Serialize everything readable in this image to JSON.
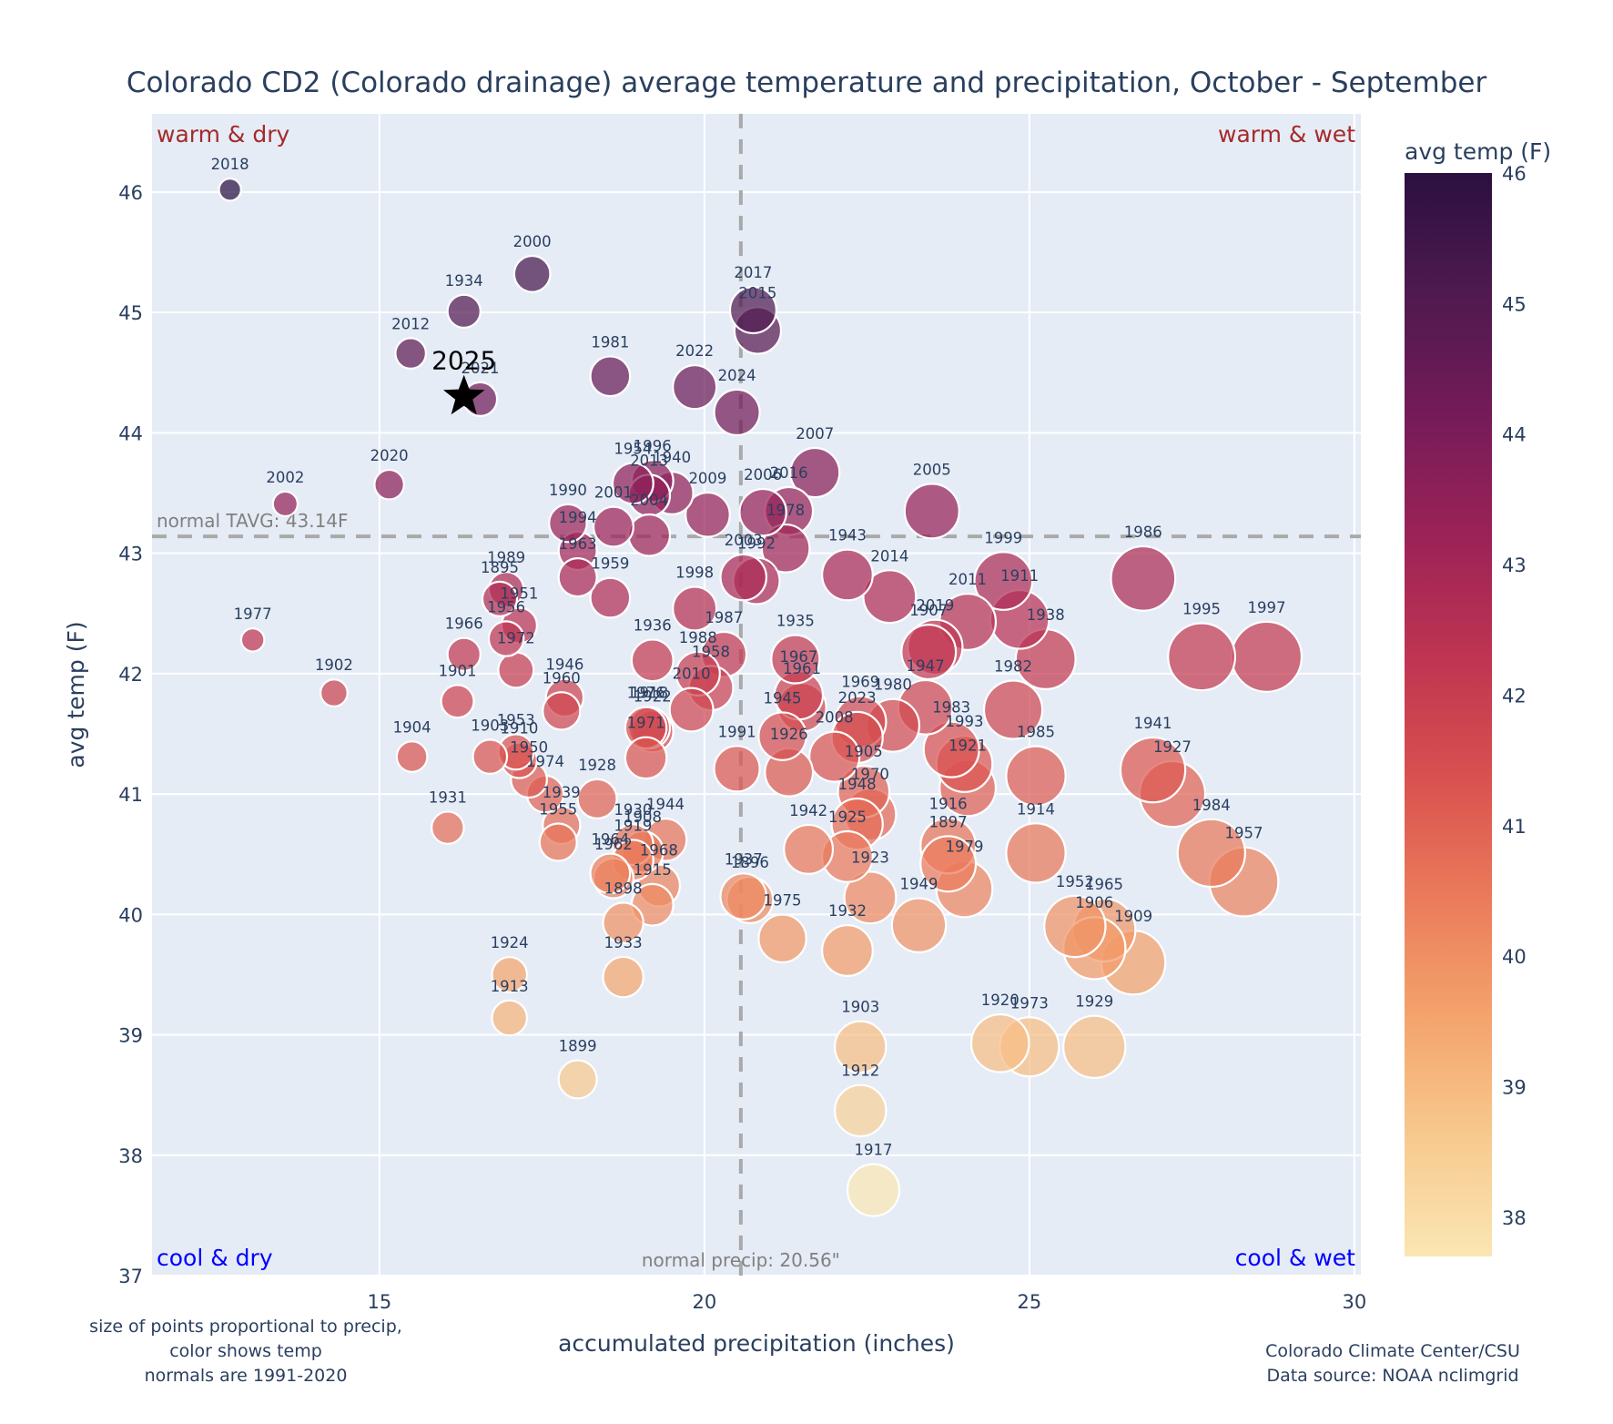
{
  "chart_data": {
    "type": "scatter",
    "title": "Colorado CD2 (Colorado drainage) average temperature and precipitation, October - September",
    "xlabel": "accumulated precipitation (inches)",
    "ylabel": "avg temp (F)",
    "xlim": [
      11.5,
      30.1
    ],
    "ylim": [
      37,
      46.65
    ],
    "xticks": [
      15,
      20,
      25,
      30
    ],
    "yticks": [
      37,
      38,
      39,
      40,
      41,
      42,
      43,
      44,
      45,
      46
    ],
    "grid": true,
    "normal_precip": 20.56,
    "normal_temp": 43.14,
    "normal_precip_label": "normal precip: 20.56\"",
    "normal_temp_label": "normal TAVG: 43.14F",
    "quadrant_labels": {
      "top_left": "warm & dry",
      "top_right": "warm & wet",
      "bottom_left": "cool & dry",
      "bottom_right": "cool & wet"
    },
    "colorbar": {
      "title": "avg temp (F)",
      "range": [
        37.7,
        46.0
      ],
      "ticks": [
        38,
        39,
        40,
        41,
        42,
        43,
        44,
        45,
        46
      ],
      "colorscale": [
        "#fbe6b3",
        "#f7c98e",
        "#f4a36c",
        "#ea7a5a",
        "#d8504f",
        "#be3452",
        "#9b2257",
        "#741b58",
        "#4f1a4f",
        "#2b1040"
      ],
      "position": "right"
    },
    "highlight": {
      "label": "2025",
      "precip": 16.3,
      "temp": 44.3,
      "marker": "star"
    },
    "points": [
      {
        "year": "2018",
        "precip": 12.7,
        "temp": 46.02
      },
      {
        "year": "2000",
        "precip": 17.35,
        "temp": 45.32
      },
      {
        "year": "1934",
        "precip": 16.3,
        "temp": 45.01
      },
      {
        "year": "2012",
        "precip": 15.48,
        "temp": 44.66
      },
      {
        "year": "2021",
        "precip": 16.55,
        "temp": 44.28
      },
      {
        "year": "2017",
        "precip": 20.75,
        "temp": 45.02
      },
      {
        "year": "2015",
        "precip": 20.82,
        "temp": 44.85
      },
      {
        "year": "1981",
        "precip": 18.55,
        "temp": 44.47
      },
      {
        "year": "2022",
        "precip": 19.85,
        "temp": 44.38
      },
      {
        "year": "2024",
        "precip": 20.5,
        "temp": 44.17
      },
      {
        "year": "2002",
        "precip": 13.55,
        "temp": 43.41
      },
      {
        "year": "2020",
        "precip": 15.15,
        "temp": 43.57
      },
      {
        "year": "2007",
        "precip": 21.7,
        "temp": 43.67
      },
      {
        "year": "2005",
        "precip": 23.5,
        "temp": 43.35
      },
      {
        "year": "1954",
        "precip": 18.9,
        "temp": 43.58
      },
      {
        "year": "1996",
        "precip": 19.2,
        "temp": 43.6
      },
      {
        "year": "2013",
        "precip": 19.15,
        "temp": 43.48
      },
      {
        "year": "1940",
        "precip": 19.5,
        "temp": 43.5
      },
      {
        "year": "2004",
        "precip": 19.15,
        "temp": 43.15
      },
      {
        "year": "2009",
        "precip": 20.05,
        "temp": 43.32
      },
      {
        "year": "2006",
        "precip": 20.9,
        "temp": 43.34
      },
      {
        "year": "2016",
        "precip": 21.3,
        "temp": 43.35
      },
      {
        "year": "1978",
        "precip": 21.25,
        "temp": 43.04
      },
      {
        "year": "1990",
        "precip": 17.9,
        "temp": 43.25
      },
      {
        "year": "2001",
        "precip": 18.6,
        "temp": 43.22
      },
      {
        "year": "1994",
        "precip": 18.05,
        "temp": 43.02
      },
      {
        "year": "1963",
        "precip": 18.05,
        "temp": 42.8
      },
      {
        "year": "1959",
        "precip": 18.55,
        "temp": 42.63
      },
      {
        "year": "2003",
        "precip": 20.6,
        "temp": 42.8
      },
      {
        "year": "1992",
        "precip": 20.8,
        "temp": 42.77
      },
      {
        "year": "1943",
        "precip": 22.2,
        "temp": 42.82
      },
      {
        "year": "2014",
        "precip": 22.85,
        "temp": 42.64
      },
      {
        "year": "1999",
        "precip": 24.6,
        "temp": 42.77
      },
      {
        "year": "1911",
        "precip": 24.85,
        "temp": 42.45
      },
      {
        "year": "2011",
        "precip": 24.05,
        "temp": 42.43
      },
      {
        "year": "1986",
        "precip": 26.75,
        "temp": 42.79
      },
      {
        "year": "1989",
        "precip": 16.95,
        "temp": 42.7
      },
      {
        "year": "1895",
        "precip": 16.85,
        "temp": 42.62
      },
      {
        "year": "1951",
        "precip": 17.15,
        "temp": 42.4
      },
      {
        "year": "1956",
        "precip": 16.95,
        "temp": 42.29
      },
      {
        "year": "1972",
        "precip": 17.1,
        "temp": 42.03
      },
      {
        "year": "1966",
        "precip": 16.3,
        "temp": 42.16
      },
      {
        "year": "1977",
        "precip": 13.05,
        "temp": 42.28
      },
      {
        "year": "1902",
        "precip": 14.3,
        "temp": 41.84
      },
      {
        "year": "1901",
        "precip": 16.2,
        "temp": 41.77
      },
      {
        "year": "1998",
        "precip": 19.85,
        "temp": 42.54
      },
      {
        "year": "1936",
        "precip": 19.2,
        "temp": 42.11
      },
      {
        "year": "1987",
        "precip": 20.3,
        "temp": 42.16
      },
      {
        "year": "1988",
        "precip": 19.9,
        "temp": 42.0
      },
      {
        "year": "1958",
        "precip": 20.1,
        "temp": 41.88
      },
      {
        "year": "2010",
        "precip": 19.8,
        "temp": 41.7
      },
      {
        "year": "1918",
        "precip": 19.15,
        "temp": 41.55
      },
      {
        "year": "1922",
        "precip": 19.2,
        "temp": 41.52
      },
      {
        "year": "1946",
        "precip": 17.85,
        "temp": 41.8
      },
      {
        "year": "1960",
        "precip": 17.8,
        "temp": 41.69
      },
      {
        "year": "1935",
        "precip": 21.4,
        "temp": 42.12
      },
      {
        "year": "1967",
        "precip": 21.45,
        "temp": 41.82
      },
      {
        "year": "1961",
        "precip": 21.5,
        "temp": 41.72
      },
      {
        "year": "1945",
        "precip": 21.2,
        "temp": 41.48
      },
      {
        "year": "2019",
        "precip": 23.55,
        "temp": 42.22
      },
      {
        "year": "1907",
        "precip": 23.45,
        "temp": 42.18
      },
      {
        "year": "1938",
        "precip": 25.25,
        "temp": 42.12
      },
      {
        "year": "1995",
        "precip": 27.65,
        "temp": 42.14
      },
      {
        "year": "1997",
        "precip": 28.65,
        "temp": 42.14
      },
      {
        "year": "1947",
        "precip": 23.4,
        "temp": 41.72
      },
      {
        "year": "1982",
        "precip": 24.75,
        "temp": 41.7
      },
      {
        "year": "1969",
        "precip": 22.4,
        "temp": 41.6
      },
      {
        "year": "1980",
        "precip": 22.9,
        "temp": 41.57
      },
      {
        "year": "2023",
        "precip": 22.35,
        "temp": 41.47
      },
      {
        "year": "2008",
        "precip": 22.0,
        "temp": 41.31
      },
      {
        "year": "1976",
        "precip": 19.1,
        "temp": 41.55
      },
      {
        "year": "1971",
        "precip": 19.1,
        "temp": 41.3
      },
      {
        "year": "1991",
        "precip": 20.5,
        "temp": 41.21
      },
      {
        "year": "1926",
        "precip": 21.3,
        "temp": 41.18
      },
      {
        "year": "1983",
        "precip": 23.8,
        "temp": 41.37
      },
      {
        "year": "1993",
        "precip": 24.0,
        "temp": 41.25
      },
      {
        "year": "1921",
        "precip": 24.05,
        "temp": 41.05
      },
      {
        "year": "1985",
        "precip": 25.1,
        "temp": 41.15
      },
      {
        "year": "1941",
        "precip": 26.9,
        "temp": 41.2
      },
      {
        "year": "1927",
        "precip": 27.2,
        "temp": 41.0
      },
      {
        "year": "1904",
        "precip": 15.5,
        "temp": 41.31
      },
      {
        "year": "1903",
        "precip": 16.7,
        "temp": 41.31
      },
      {
        "year": "1953",
        "precip": 17.1,
        "temp": 41.35
      },
      {
        "year": "1910",
        "precip": 17.15,
        "temp": 41.28
      },
      {
        "year": "1950",
        "precip": 17.3,
        "temp": 41.12
      },
      {
        "year": "1974",
        "precip": 17.55,
        "temp": 41.0
      },
      {
        "year": "1928",
        "precip": 18.35,
        "temp": 40.96
      },
      {
        "year": "1939",
        "precip": 17.8,
        "temp": 40.74
      },
      {
        "year": "1955",
        "precip": 17.75,
        "temp": 40.6
      },
      {
        "year": "1931",
        "precip": 16.05,
        "temp": 40.72
      },
      {
        "year": "1905",
        "precip": 22.45,
        "temp": 41.02
      },
      {
        "year": "1970",
        "precip": 22.55,
        "temp": 40.83
      },
      {
        "year": "1948",
        "precip": 22.35,
        "temp": 40.75
      },
      {
        "year": "1925",
        "precip": 22.2,
        "temp": 40.48
      },
      {
        "year": "1942",
        "precip": 21.6,
        "temp": 40.54
      },
      {
        "year": "1916",
        "precip": 23.75,
        "temp": 40.57
      },
      {
        "year": "1897",
        "precip": 23.75,
        "temp": 40.42
      },
      {
        "year": "1979",
        "precip": 24.0,
        "temp": 40.21
      },
      {
        "year": "1914",
        "precip": 25.1,
        "temp": 40.51
      },
      {
        "year": "1984",
        "precip": 27.8,
        "temp": 40.51
      },
      {
        "year": "1957",
        "precip": 28.3,
        "temp": 40.27
      },
      {
        "year": "1944",
        "precip": 19.4,
        "temp": 40.62
      },
      {
        "year": "1930",
        "precip": 18.9,
        "temp": 40.58
      },
      {
        "year": "1908",
        "precip": 19.05,
        "temp": 40.52
      },
      {
        "year": "1919",
        "precip": 18.9,
        "temp": 40.45
      },
      {
        "year": "1964",
        "precip": 18.55,
        "temp": 40.34
      },
      {
        "year": "1962",
        "precip": 18.6,
        "temp": 40.3
      },
      {
        "year": "1968",
        "precip": 19.3,
        "temp": 40.24
      },
      {
        "year": "1898",
        "precip": 18.75,
        "temp": 39.93
      },
      {
        "year": "1915",
        "precip": 19.2,
        "temp": 40.08
      },
      {
        "year": "1937",
        "precip": 20.6,
        "temp": 40.15
      },
      {
        "year": "1896",
        "precip": 20.7,
        "temp": 40.12
      },
      {
        "year": "1923",
        "precip": 22.55,
        "temp": 40.14
      },
      {
        "year": "1975",
        "precip": 21.2,
        "temp": 39.8
      },
      {
        "year": "1932",
        "precip": 22.2,
        "temp": 39.7
      },
      {
        "year": "1949",
        "precip": 23.3,
        "temp": 39.91
      },
      {
        "year": "1952",
        "precip": 25.7,
        "temp": 39.9
      },
      {
        "year": "1906",
        "precip": 26.0,
        "temp": 39.72
      },
      {
        "year": "1965",
        "precip": 26.15,
        "temp": 39.87
      },
      {
        "year": "1909",
        "precip": 26.6,
        "temp": 39.6
      },
      {
        "year": "1924",
        "precip": 17.0,
        "temp": 39.5
      },
      {
        "year": "1933",
        "precip": 18.75,
        "temp": 39.48
      },
      {
        "year": "1913",
        "precip": 17.0,
        "temp": 39.14
      },
      {
        "year": "1899",
        "precip": 18.05,
        "temp": 38.63
      },
      {
        "year": "1903b",
        "precip": 22.4,
        "temp": 38.9
      },
      {
        "year": "1920",
        "precip": 24.55,
        "temp": 38.93
      },
      {
        "year": "1973",
        "precip": 25.0,
        "temp": 38.9
      },
      {
        "year": "1929",
        "precip": 26.0,
        "temp": 38.9
      },
      {
        "year": "1912",
        "precip": 22.4,
        "temp": 38.37
      },
      {
        "year": "1917",
        "precip": 22.6,
        "temp": 37.71
      }
    ],
    "footer_left": [
      "size of points proportional to precip,",
      "color shows temp",
      "normals are 1991-2020"
    ],
    "footer_right": [
      "Colorado Climate Center/CSU",
      "Data source: NOAA nclimgrid"
    ]
  }
}
